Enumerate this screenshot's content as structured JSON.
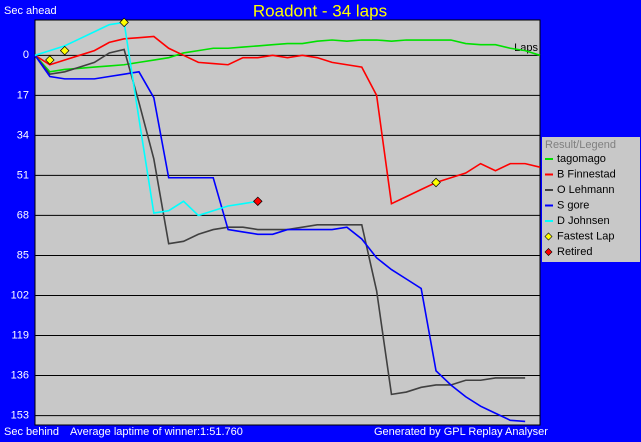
{
  "chart_data": {
    "type": "line",
    "title": "Roadont - 34 laps",
    "y_label_top": "Sec ahead",
    "y_label_bottom": "Sec behind",
    "x_label": "Laps",
    "footer_left": "Average laptime of winner:1:51.760",
    "footer_right": "Generated by GPL Replay Analyser",
    "legend_title": "Result/Legend",
    "legend": "right",
    "y_inverted": true,
    "grid": true,
    "xlim": [
      0,
      34
    ],
    "ylim": [
      -15,
      157
    ],
    "yticks": [
      0,
      17,
      34,
      51,
      68,
      85,
      102,
      119,
      136,
      153
    ],
    "x": [
      0,
      1,
      2,
      3,
      4,
      5,
      6,
      7,
      8,
      9,
      10,
      11,
      12,
      13,
      14,
      15,
      16,
      17,
      18,
      19,
      20,
      21,
      22,
      23,
      24,
      25,
      26,
      27,
      28,
      29,
      30,
      31,
      32,
      33,
      34
    ],
    "series": [
      {
        "name": "tagomago",
        "color": "#00e000",
        "values": [
          0,
          7,
          6,
          5.5,
          5,
          4.5,
          4,
          3,
          2,
          1,
          -1,
          -2,
          -3,
          -3,
          -3.5,
          -4,
          -4.5,
          -5,
          -5,
          -6,
          -6.5,
          -6,
          -6.5,
          -6.5,
          -6,
          -6.5,
          -6.5,
          -6.5,
          -6.5,
          -5,
          -4.5,
          -4.5,
          -3,
          -2,
          0
        ]
      },
      {
        "name": "B Finnestad",
        "color": "#ff0000",
        "values": [
          0,
          4,
          2,
          0,
          -2,
          -5.5,
          -7,
          -7.5,
          -8,
          -3,
          0,
          3,
          3.5,
          4,
          1,
          1,
          0,
          1,
          0,
          1,
          3,
          4,
          5,
          17,
          63,
          60,
          57,
          54,
          52,
          50,
          46,
          49,
          46,
          46,
          47.5
        ]
      },
      {
        "name": "O Lehmann",
        "color": "#404040",
        "values": [
          0,
          8,
          7,
          5,
          3,
          -1,
          -2.5,
          20,
          44,
          80,
          79,
          76,
          74,
          73,
          73,
          74,
          74,
          74,
          73,
          72,
          72,
          72,
          72,
          100,
          144,
          143,
          141,
          140,
          140,
          138,
          138,
          137,
          137,
          137,
          null
        ]
      },
      {
        "name": "S gore",
        "color": "#0000ff",
        "values": [
          0,
          9,
          10,
          10,
          10,
          9,
          8,
          7,
          18,
          52,
          52,
          52,
          52,
          74,
          75,
          76,
          76,
          74,
          74,
          74,
          74,
          73,
          78,
          86,
          91,
          95,
          99,
          134,
          140,
          145,
          149,
          152,
          155,
          155.5,
          null
        ]
      },
      {
        "name": "D Johnsen",
        "color": "#00ffff",
        "values": [
          0,
          -2,
          -4,
          -7,
          -10,
          -13,
          -14,
          27,
          67,
          66,
          62,
          68,
          66,
          64,
          63,
          62,
          null,
          null,
          null,
          null,
          null,
          null,
          null,
          null,
          null,
          null,
          null,
          null,
          null,
          null,
          null,
          null,
          null,
          null,
          null
        ]
      }
    ],
    "markers": [
      {
        "name": "Fastest Lap",
        "color": "#ffff00",
        "x": [
          1,
          2,
          6,
          27
        ],
        "values": [
          2,
          -2,
          -14,
          54
        ]
      },
      {
        "name": "Retired",
        "color": "#ff0000",
        "x": [
          15
        ],
        "values": [
          62
        ]
      }
    ]
  }
}
